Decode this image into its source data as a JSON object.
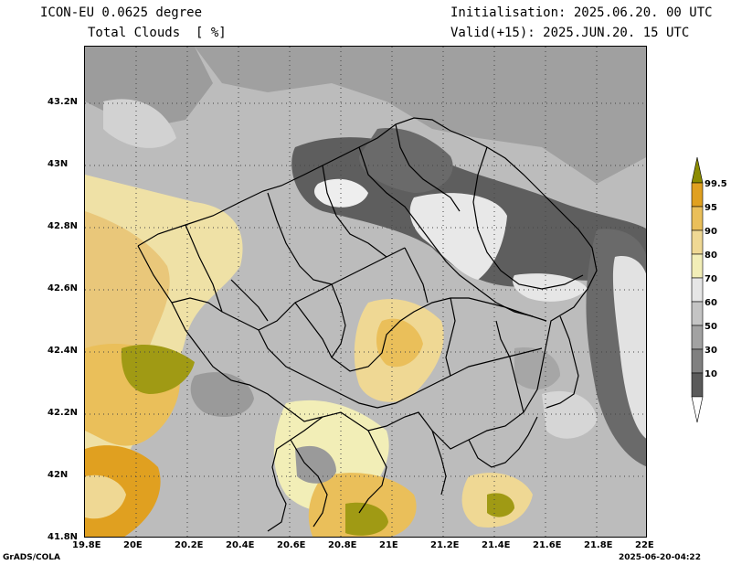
{
  "header": {
    "model": "ICON-EU 0.0625 degree",
    "variable": "Total Clouds  [ %]",
    "init": "Initialisation: 2025.06.20. 00 UTC",
    "valid": "Valid(+15): 2025.JUN.20. 15 UTC"
  },
  "footer": {
    "credit": "GrADS/COLA",
    "timestamp": "2025-06-20-04:22"
  },
  "axes": {
    "x_ticks": [
      "19.8E",
      "20E",
      "20.2E",
      "20.4E",
      "20.6E",
      "20.8E",
      "21E",
      "21.2E",
      "21.4E",
      "21.6E",
      "21.8E",
      "22E"
    ],
    "y_ticks": [
      "43.2N",
      "43N",
      "42.8N",
      "42.6N",
      "42.4N",
      "42.2N",
      "42N",
      "41.8N"
    ],
    "x_range": [
      19.8,
      22.0
    ],
    "y_range": [
      41.8,
      43.4
    ]
  },
  "legend": {
    "labels": [
      "99.5",
      "95",
      "90",
      "80",
      "70",
      "60",
      "50",
      "30",
      "10"
    ],
    "colors": [
      "#8c8c00",
      "#e0a020",
      "#eabf5a",
      "#efd894",
      "#f2eeb7",
      "#e6e6e6",
      "#c4c4c4",
      "#a2a2a2",
      "#808080",
      "#5a5a5a",
      "#ffffff"
    ]
  }
}
